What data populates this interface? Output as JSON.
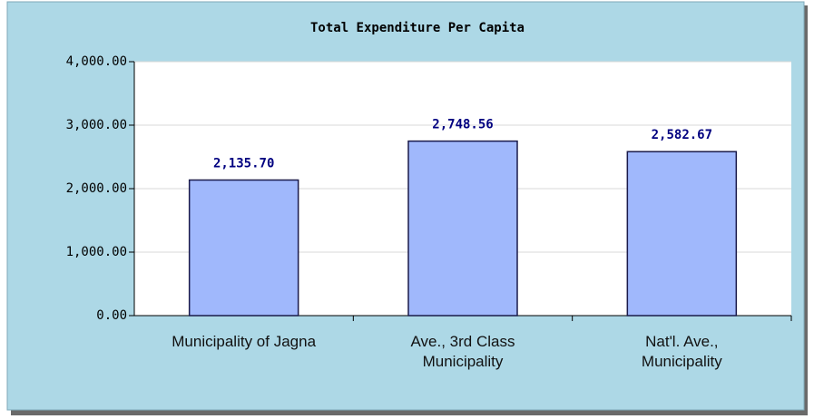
{
  "chart_data": {
    "type": "bar",
    "title": "Total Expenditure Per Capita",
    "categories": [
      "Municipality of Jagna",
      "Ave., 3rd Class Municipality",
      "Nat'l. Ave., Municipality"
    ],
    "values": [
      2135.7,
      2748.56,
      2582.67
    ],
    "value_labels": [
      "2,135.70",
      "2,748.56",
      "2,582.67"
    ],
    "color": "#a0b8fc",
    "ylim": [
      0,
      4000
    ],
    "yticks": [
      {
        "value": 0,
        "label": "0.00"
      },
      {
        "value": 1000,
        "label": "1,000.00"
      },
      {
        "value": 2000,
        "label": "2,000.00"
      },
      {
        "value": 3000,
        "label": "3,000.00"
      },
      {
        "value": 4000,
        "label": "4,000.00"
      }
    ],
    "grid": true
  }
}
